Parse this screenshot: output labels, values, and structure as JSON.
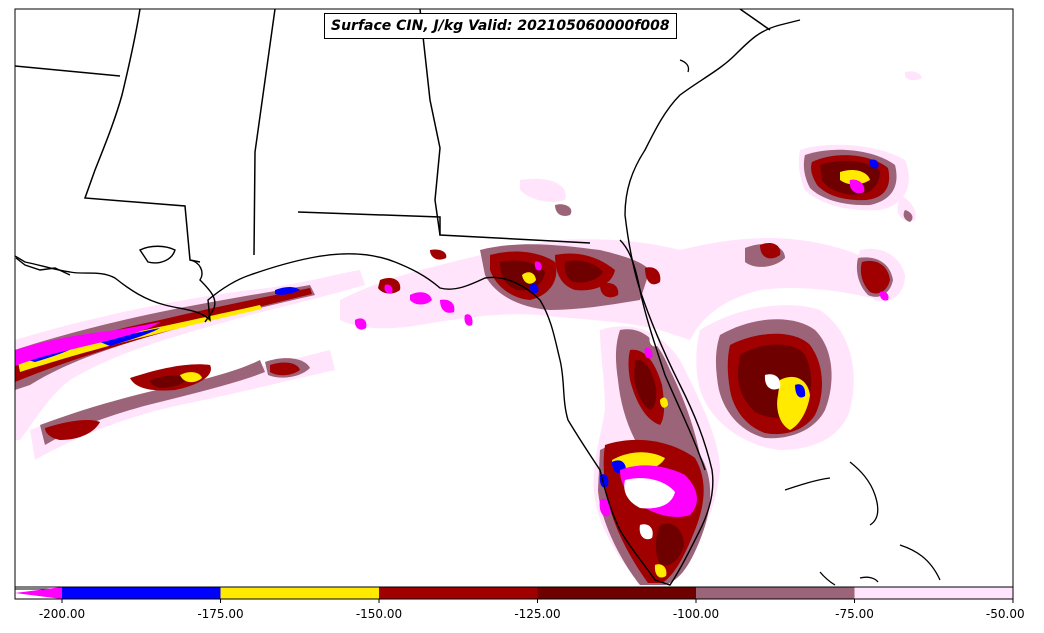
{
  "map": {
    "title": "Surface CIN, J/kg Valid: 202105060000f008",
    "field": "Surface CIN",
    "units": "J/kg",
    "valid_time": "202105060000f008",
    "region": "Southeastern US / Florida / Gulf of Mexico"
  },
  "colorbar": {
    "extend": "min",
    "under_color": "#ff00ff",
    "bins": [
      {
        "from": -200,
        "to": -175,
        "color": "#0000ff"
      },
      {
        "from": -175,
        "to": -150,
        "color": "#ffea00"
      },
      {
        "from": -150,
        "to": -125,
        "color": "#a00000"
      },
      {
        "from": -125,
        "to": -100,
        "color": "#6e0000"
      },
      {
        "from": -100,
        "to": -75,
        "color": "#9c6478"
      },
      {
        "from": -75,
        "to": -50,
        "color": "#ffe4fc"
      }
    ],
    "ticks": [
      {
        "value": -200,
        "label": "-200.00"
      },
      {
        "value": -175,
        "label": "-175.00"
      },
      {
        "value": -150,
        "label": "-150.00"
      },
      {
        "value": -125,
        "label": "-125.00"
      },
      {
        "value": -100,
        "label": "-100.00"
      },
      {
        "value": -75,
        "label": "-75.00"
      },
      {
        "value": -50,
        "label": "-50.00"
      }
    ]
  }
}
